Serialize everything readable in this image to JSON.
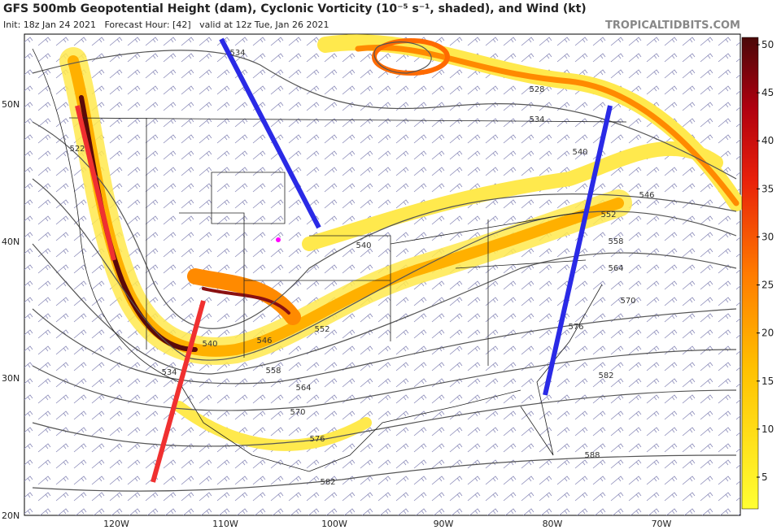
{
  "header": {
    "title": "GFS 500mb Geopotential Height (dam), Cyclonic Vorticity (10⁻⁵ s⁻¹, shaded), and Wind (kt)",
    "subtitle": "Init: 18z Jan 24 2021   Forecast Hour: [42]   valid at 12z Tue, Jan 26 2021",
    "source": "TROPICALTIDBITS.COM"
  },
  "map": {
    "latitude_labels": [
      "50N",
      "40N",
      "30N",
      "20N"
    ],
    "longitude_labels": [
      "120W",
      "110W",
      "100W",
      "90W",
      "80W",
      "70W"
    ],
    "contour_labels": [
      "534",
      "528",
      "534",
      "540",
      "546",
      "552",
      "558",
      "564",
      "570",
      "576",
      "582",
      "588",
      "540",
      "552",
      "546",
      "540",
      "534",
      "558",
      "564",
      "570",
      "576",
      "582",
      "522"
    ]
  },
  "colorbar": {
    "ticks": [
      5,
      10,
      15,
      20,
      25,
      30,
      35,
      40,
      45,
      50
    ]
  }
}
